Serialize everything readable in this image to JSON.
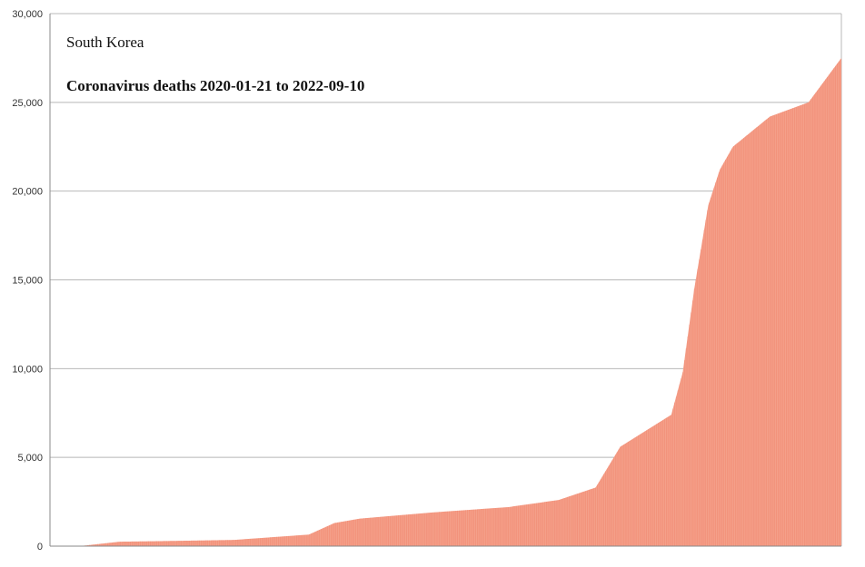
{
  "chart_data": {
    "type": "bar",
    "title": "South Korea",
    "subtitle": "Coronavirus deaths 2020-01-21 to 2022-09-10",
    "xlabel": "",
    "ylabel": "",
    "x_start": "2020-01-21",
    "x_end": "2022-09-10",
    "ylim": [
      0,
      30000
    ],
    "yticks": [
      0,
      5000,
      10000,
      15000,
      20000,
      25000,
      30000
    ],
    "ytick_labels": [
      "0",
      "5,000",
      "10,000",
      "15,000",
      "20,000",
      "25,000",
      "30,000"
    ],
    "grid": true,
    "legend": "none",
    "colors": {
      "bar": "#f4a08a",
      "bar_stroke": "#f07a62",
      "grid": "#b8b8b8",
      "axis": "#8a8a8a"
    },
    "series": [
      {
        "dates": [
          "2020-01-21",
          "2020-03-01",
          "2020-04-15",
          "2020-06-01",
          "2020-09-01",
          "2020-12-01",
          "2021-01-01",
          "2021-02-01",
          "2021-05-01",
          "2021-08-01",
          "2021-10-01",
          "2021-11-15",
          "2021-12-15",
          "2022-01-15",
          "2022-02-15",
          "2022-03-01",
          "2022-03-15",
          "2022-04-01",
          "2022-04-15",
          "2022-05-01",
          "2022-06-15",
          "2022-08-01",
          "2022-09-10"
        ],
        "values": [
          0,
          20,
          250,
          280,
          350,
          650,
          1300,
          1550,
          1900,
          2200,
          2600,
          3300,
          5600,
          6500,
          7400,
          9800,
          14500,
          19200,
          21200,
          22500,
          24200,
          25000,
          27500
        ]
      }
    ]
  }
}
